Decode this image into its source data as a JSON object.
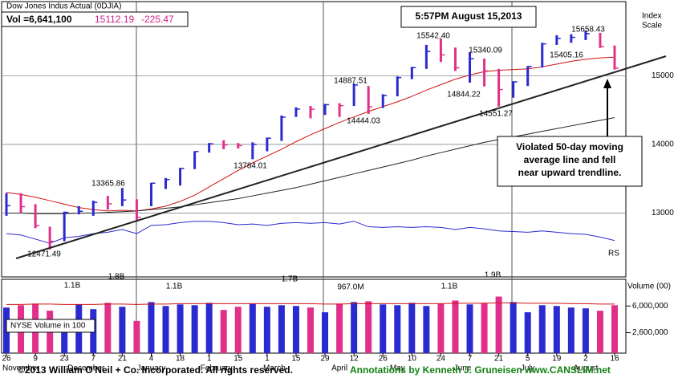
{
  "chart_data": {
    "type": "ohlc",
    "title": "Dow Jones Indus Actual  (0DJIA)",
    "volume_text": "Vol =6,641,100",
    "last_price": "15112.19",
    "change": "-225.47",
    "timestamp": "5:57PM  August 15,2013",
    "axis_label": [
      "Index",
      "Scale"
    ],
    "rs_label": "RS",
    "volume_axis_label": "Volume (00)",
    "volume_legend": "NYSE Volume in 100",
    "callout": [
      "Violated 50-day moving",
      "average line and fell",
      "near upward trendline."
    ],
    "footer_left": "©2013 William O'Neil + Co. Incorporated. All rights reserved.",
    "footer_right": "Annotations by Kenneth J. Gruneisen www.CANSLIM.net",
    "annotations": [
      "15542.40",
      "15340.09",
      "14887.51",
      "14844.22",
      "14444.03",
      "14551.27",
      "13784.01",
      "13365.86",
      "12471.49",
      "15658.43",
      "15405.16"
    ],
    "volume_annotations": [
      "1.1B",
      "1.8B",
      "1.1B",
      "1.7B",
      "967.0M",
      "1.1B",
      "1.9B"
    ],
    "xticks": [
      "26",
      "9",
      "23",
      "7",
      "21",
      "4",
      "18",
      "1",
      "15",
      "1",
      "15",
      "29",
      "12",
      "26",
      "10",
      "24",
      "7",
      "21",
      "5",
      "19",
      "2",
      "16"
    ],
    "months": [
      "November",
      "December",
      "January",
      "February",
      "March",
      "April",
      "May",
      "June",
      "July",
      "August"
    ],
    "ylim": [
      12070,
      16080
    ],
    "yticks": [
      13000,
      14000,
      15000
    ],
    "grid": true,
    "up_color": "#2a2ad0",
    "down_color": "#e0308a",
    "high": [
      13290,
      13290,
      13130,
      12800,
      13020,
      13100,
      13180,
      13250,
      13366,
      13200,
      13440,
      13510,
      13660,
      13900,
      14020,
      14060,
      14020,
      14030,
      14100,
      14420,
      14540,
      14560,
      14590,
      14600,
      14888,
      14850,
      14730,
      14990,
      15130,
      15450,
      15542,
      15410,
      15340,
      15250,
      15100,
      14920,
      15140,
      15480,
      15590,
      15605,
      15658,
      15625,
      15440
    ],
    "low": [
      12960,
      13000,
      12780,
      12471,
      12590,
      12980,
      12960,
      13050,
      13100,
      12880,
      13100,
      13350,
      13400,
      13640,
      13880,
      13930,
      13940,
      13784,
      13900,
      14050,
      14400,
      14380,
      14430,
      14400,
      14560,
      14444,
      14530,
      14700,
      14950,
      15100,
      15200,
      15070,
      14900,
      14844,
      14551,
      14680,
      14850,
      15120,
      15450,
      15480,
      15520,
      15405,
      15090
    ],
    "close": [
      13107,
      13093,
      12815,
      12588,
      13010,
      13026,
      13155,
      13135,
      13190,
      12938,
      13435,
      13488,
      13650,
      13896,
      14009,
      13993,
      13982,
      14001,
      14090,
      14397,
      14514,
      14512,
      14579,
      14565,
      14865,
      14547,
      14712,
      14973,
      15118,
      15354,
      15303,
      15116,
      15248,
      15070,
      14799,
      14910,
      15136,
      15464,
      15544,
      15559,
      15613,
      15425,
      15112
    ],
    "lines": [
      {
        "name": "50-day",
        "color": "#d01010",
        "values": [
          13300,
          13270,
          13230,
          13180,
          13130,
          13080,
          13050,
          13030,
          13040,
          13030,
          13060,
          13100,
          13170,
          13260,
          13380,
          13500,
          13620,
          13730,
          13830,
          13930,
          14040,
          14140,
          14230,
          14320,
          14400,
          14480,
          14550,
          14620,
          14700,
          14790,
          14870,
          14950,
          15010,
          15060,
          15080,
          15090,
          15100,
          15130,
          15170,
          15210,
          15240,
          15260,
          15270
        ]
      },
      {
        "name": "200-day",
        "color": "#222222",
        "values": [
          13000,
          13000,
          12990,
          12990,
          12990,
          13000,
          13000,
          13010,
          13020,
          13030,
          13050,
          13070,
          13090,
          13120,
          13150,
          13180,
          13210,
          13250,
          13290,
          13330,
          13370,
          13420,
          13470,
          13520,
          13570,
          13620,
          13670,
          13720,
          13770,
          13830,
          13880,
          13930,
          13980,
          14030,
          14070,
          14110,
          14150,
          14190,
          14230,
          14270,
          14310,
          14350,
          14390
        ]
      },
      {
        "name": "RS",
        "color": "#2a2ad0",
        "values": [
          12700,
          12680,
          12620,
          12560,
          12640,
          12660,
          12700,
          12720,
          12760,
          12700,
          12820,
          12830,
          12860,
          12880,
          12880,
          12860,
          12830,
          12840,
          12820,
          12850,
          12860,
          12850,
          12860,
          12840,
          12880,
          12800,
          12790,
          12800,
          12790,
          12800,
          12790,
          12760,
          12790,
          12770,
          12740,
          12730,
          12720,
          12740,
          12720,
          12700,
          12690,
          12650,
          12600
        ]
      }
    ],
    "volume": [
      5800000,
      6100000,
      6300000,
      5400000,
      4200000,
      6200000,
      5600000,
      6400000,
      5900000,
      4100000,
      6500000,
      6000000,
      6200000,
      6100000,
      6400000,
      5500000,
      5900000,
      6300000,
      5900000,
      6100000,
      6000000,
      5800000,
      5200000,
      6300000,
      6500000,
      6600000,
      6200000,
      6100000,
      6400000,
      6000000,
      6300000,
      6700000,
      6200000,
      6400000,
      7200000,
      6500000,
      5200000,
      6100000,
      6000000,
      5800000,
      5700000,
      5400000,
      6100000
    ],
    "volume_avg": [
      6200000,
      6200000,
      6250000,
      6250000,
      6200000,
      6200000,
      6200000,
      6250000,
      6250000,
      6200000,
      6250000,
      6250000,
      6300000,
      6300000,
      6300000,
      6300000,
      6300000,
      6300000,
      6300000,
      6300000,
      6300000,
      6300000,
      6250000,
      6250000,
      6300000,
      6300000,
      6300000,
      6300000,
      6300000,
      6300000,
      6300000,
      6350000,
      6350000,
      6350000,
      6400000,
      6400000,
      6350000,
      6350000,
      6350000,
      6300000,
      6300000,
      6250000,
      6250000
    ],
    "y2lim": [
      0,
      9400000
    ],
    "y2ticks": [
      {
        "value": 2600000,
        "label": "2,600,000"
      },
      {
        "value": 6000000,
        "label": "6,000,000"
      }
    ]
  }
}
